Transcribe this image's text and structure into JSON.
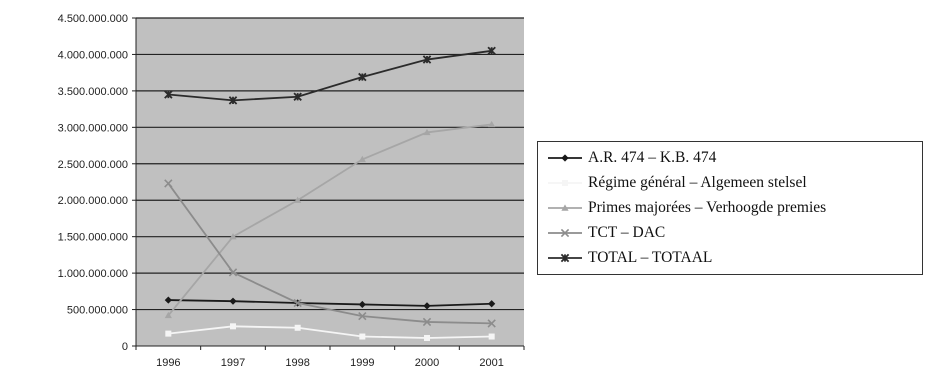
{
  "chart_data": {
    "type": "line",
    "categories": [
      "1996",
      "1997",
      "1998",
      "1999",
      "2000",
      "2001"
    ],
    "ylim": [
      0,
      4500000
    ],
    "yticks": [
      0,
      500000,
      1000000,
      1500000,
      2000000,
      2500000,
      3000000,
      3500000,
      4000000,
      4500000
    ],
    "ytick_labels": [
      "0",
      "500.000.000",
      "1.000.000.000",
      "1.500.000.000",
      "2.000.000.000",
      "2.500.000.000",
      "3.000.000.000",
      "3.500.000.000",
      "4.000.000.000",
      "4.500.000.000"
    ],
    "grid": true,
    "legend_position": "right",
    "plot_background": "#c0c0c0",
    "series": [
      {
        "name": "A.R. 474 – K.B. 474",
        "color": "#1a1a1a",
        "marker": "diamond",
        "values": [
          630000,
          615000,
          590000,
          570000,
          550000,
          580000
        ]
      },
      {
        "name": "Régime général – Algemeen stelsel",
        "color": "#f5f5f5",
        "marker": "square",
        "values": [
          170000,
          270000,
          250000,
          130000,
          110000,
          130000
        ]
      },
      {
        "name": "Primes majorées – Verhoogde premies",
        "color": "#a6a6a6",
        "marker": "triangle",
        "values": [
          420000,
          1500000,
          2000000,
          2560000,
          2930000,
          3040000
        ]
      },
      {
        "name": "TCT – DAC",
        "color": "#8c8c8c",
        "marker": "x",
        "values": [
          2230000,
          1010000,
          590000,
          410000,
          330000,
          310000
        ]
      },
      {
        "name": "TOTAL – TOTAAL",
        "color": "#2b2b2b",
        "marker": "asterisk",
        "values": [
          3450000,
          3370000,
          3420000,
          3690000,
          3930000,
          4050000
        ]
      }
    ]
  }
}
